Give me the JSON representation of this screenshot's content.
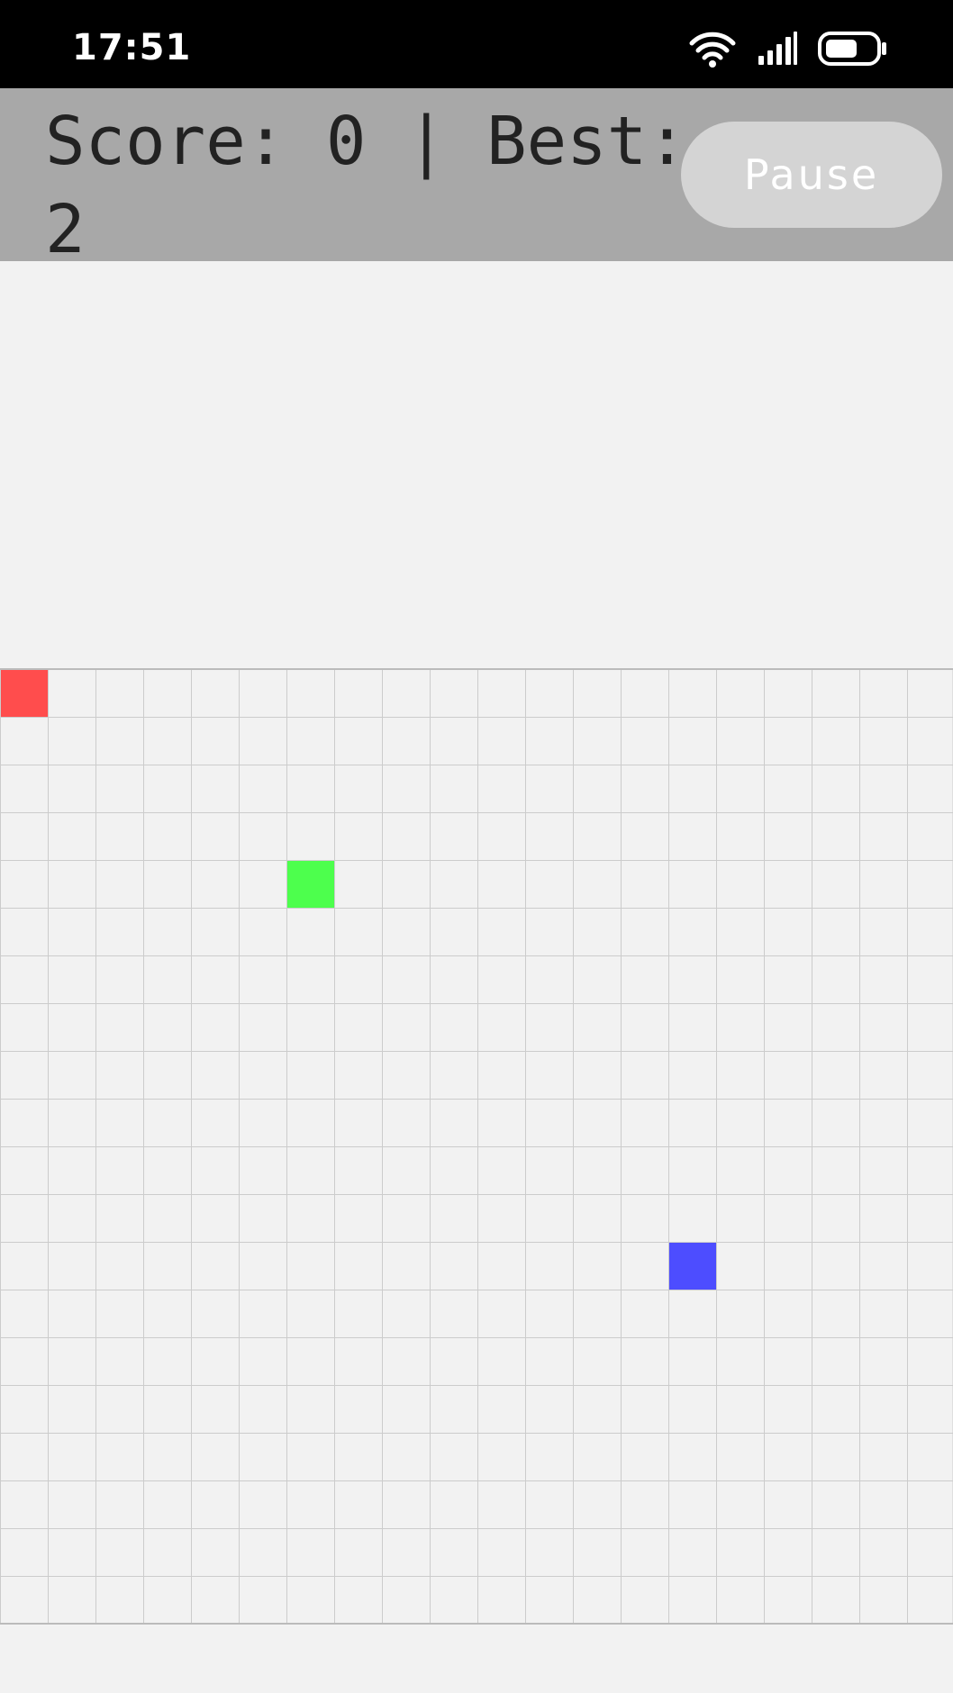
{
  "status_bar": {
    "time": "17:51",
    "icons": [
      "wifi-icon",
      "cellular-signal-icon",
      "battery-icon"
    ]
  },
  "header": {
    "score_text": "Score: 0 | Best: 2",
    "pause_label": "Pause"
  },
  "board": {
    "columns": 20,
    "rows": 20,
    "grid_color": "#cccccc",
    "border_color": "#bbbbbb",
    "background": "#f2f2f2",
    "pieces": [
      {
        "name": "snake-head",
        "col": 0,
        "row": 0,
        "color": "#ff4d4d"
      },
      {
        "name": "food-green",
        "col": 6,
        "row": 4,
        "color": "#4dff4d"
      },
      {
        "name": "food-blue",
        "col": 14,
        "row": 12,
        "color": "#4d4dff"
      }
    ]
  }
}
